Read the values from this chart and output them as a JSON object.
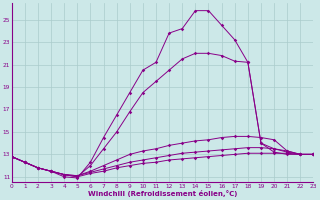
{
  "xlabel": "Windchill (Refroidissement éolien,°C)",
  "background_color": "#cce8e8",
  "grid_color": "#aacccc",
  "line_color": "#880088",
  "x_ticks": [
    0,
    1,
    2,
    3,
    4,
    5,
    6,
    7,
    8,
    9,
    10,
    11,
    12,
    13,
    14,
    15,
    16,
    17,
    18,
    19,
    20,
    21,
    22,
    23
  ],
  "y_ticks": [
    11,
    13,
    15,
    17,
    19,
    21,
    23,
    25
  ],
  "xlim": [
    0,
    23
  ],
  "ylim": [
    10.5,
    26.5
  ],
  "series": [
    [
      12.8,
      12.3,
      11.8,
      11.5,
      11.2,
      11.0,
      11.3,
      11.5,
      11.8,
      12.0,
      12.2,
      12.3,
      12.5,
      12.6,
      12.7,
      12.8,
      12.9,
      13.0,
      13.1,
      13.1,
      13.1,
      13.1,
      13.0,
      13.0
    ],
    [
      12.8,
      12.3,
      11.8,
      11.5,
      11.2,
      11.1,
      11.4,
      11.7,
      12.0,
      12.3,
      12.5,
      12.7,
      12.9,
      13.1,
      13.2,
      13.3,
      13.4,
      13.5,
      13.6,
      13.6,
      13.5,
      13.3,
      13.0,
      13.0
    ],
    [
      12.8,
      12.3,
      11.8,
      11.5,
      11.2,
      11.1,
      11.5,
      12.0,
      12.5,
      13.0,
      13.3,
      13.5,
      13.8,
      14.0,
      14.2,
      14.3,
      14.5,
      14.6,
      14.6,
      14.5,
      14.3,
      13.3,
      13.0,
      13.0
    ],
    [
      12.8,
      12.3,
      11.8,
      11.5,
      11.2,
      11.0,
      12.0,
      13.5,
      15.0,
      16.8,
      18.5,
      19.5,
      20.5,
      21.5,
      22.0,
      22.0,
      21.8,
      21.3,
      21.2,
      14.0,
      13.5,
      13.2,
      13.0,
      13.0
    ],
    [
      12.8,
      12.3,
      11.8,
      11.5,
      11.0,
      10.9,
      12.3,
      14.5,
      16.5,
      18.5,
      20.5,
      21.2,
      23.8,
      24.2,
      25.8,
      25.8,
      24.5,
      23.2,
      21.2,
      14.0,
      13.2,
      13.0,
      13.0,
      13.0
    ]
  ]
}
